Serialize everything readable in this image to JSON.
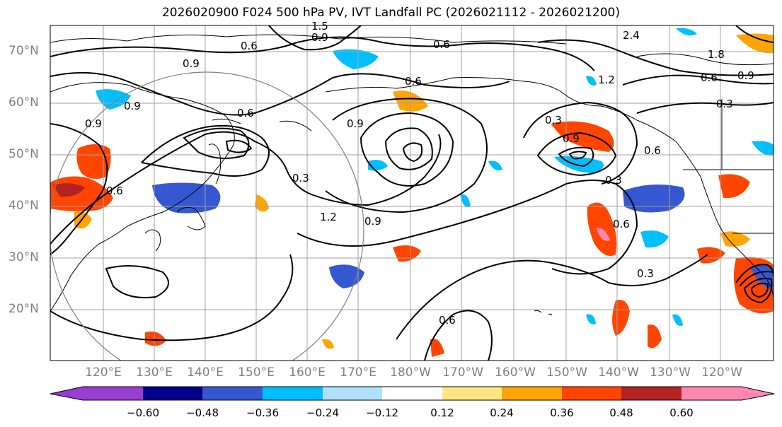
{
  "title": "2026020900 F024 500 hPa PV, IVT Landfall PC (2026021112 - 2026021200)",
  "map": {
    "lat_labels": [
      "70°N",
      "60°N",
      "50°N",
      "40°N",
      "30°N",
      "20°N"
    ],
    "lon_labels": [
      "120°E",
      "130°E",
      "140°E",
      "150°E",
      "160°E",
      "170°E",
      "180°W",
      "170°W",
      "160°W",
      "150°W",
      "140°W",
      "130°W",
      "120°W"
    ],
    "contour_labels": [
      "0.9",
      "1.5",
      "0.6",
      "0.9",
      "0.6",
      "0.9",
      "0.9",
      "0.9",
      "0.6",
      "0.6",
      "0.3",
      "1.2",
      "0.9",
      "0.3",
      "0.6",
      "0.3",
      "0.6",
      "0.9",
      "1.2",
      "2.4",
      "1.8",
      "0.9",
      "0.6",
      "0.3",
      "0.6",
      "0.6",
      "0.3"
    ],
    "colors": {
      "land_line": "#000000",
      "grid": "#a0a0a0",
      "contour": "#000000",
      "circle": "#808080"
    }
  },
  "colorbar": {
    "colors": [
      "#9a3dd1",
      "#00008b",
      "#3557cf",
      "#00bfff",
      "#b0e2ff",
      "#ffffff",
      "#ffe680",
      "#ffa500",
      "#ff4500",
      "#b22222",
      "#ff88b0"
    ],
    "tick_labels": [
      "−0.60",
      "−0.48",
      "−0.36",
      "−0.24",
      "−0.12",
      "0.12",
      "0.24",
      "0.36",
      "0.48",
      "0.60"
    ]
  }
}
